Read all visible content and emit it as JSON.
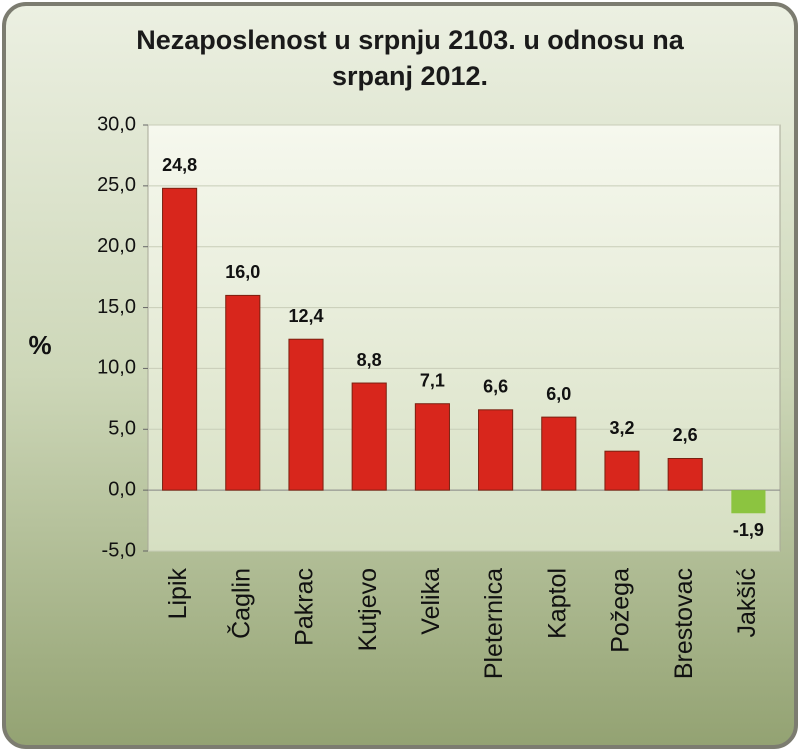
{
  "chart_data": {
    "type": "bar",
    "title": "Nezaposlenost u srpnju 2103. u odnosu na srpanj 2012.",
    "y_label": "%",
    "categories": [
      "Lipik",
      "Čaglin",
      "Pakrac",
      "Kutjevo",
      "Velika",
      "Pleternica",
      "Kaptol",
      "Požega",
      "Brestovac",
      "Jakšić"
    ],
    "values": [
      24.8,
      16.0,
      12.4,
      8.8,
      7.1,
      6.6,
      6.0,
      3.2,
      2.6,
      -1.9
    ],
    "value_labels": [
      "24,8",
      "16,0",
      "12,4",
      "8,8",
      "7,1",
      "6,6",
      "6,0",
      "3,2",
      "2,6",
      "-1,9"
    ],
    "color": "#d8261c",
    "negative_color": "#8cc440",
    "ylim": [
      -5,
      30
    ],
    "yticks": [
      {
        "value": -5,
        "label": "-5,0"
      },
      {
        "value": 0,
        "label": "0,0"
      },
      {
        "value": 5,
        "label": "5,0"
      },
      {
        "value": 10,
        "label": "10,0"
      },
      {
        "value": 15,
        "label": "15,0"
      },
      {
        "value": 20,
        "label": "20,0"
      },
      {
        "value": 25,
        "label": "25,0"
      },
      {
        "value": 30,
        "label": "30,0"
      }
    ],
    "grid": true
  }
}
